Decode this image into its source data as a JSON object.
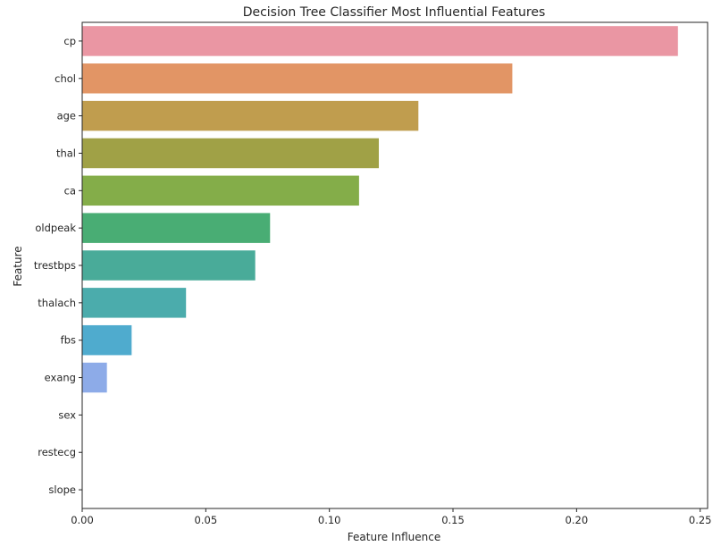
{
  "chart_data": {
    "type": "bar",
    "orientation": "horizontal",
    "title": "Decision Tree Classifier Most Influential Features",
    "xlabel": "Feature Influence",
    "ylabel": "Feature",
    "xlim": [
      0,
      0.253
    ],
    "x_ticks": [
      0.0,
      0.05,
      0.1,
      0.15,
      0.2,
      0.25
    ],
    "x_tick_labels": [
      "0.00",
      "0.05",
      "0.10",
      "0.15",
      "0.20",
      "0.25"
    ],
    "grid": false,
    "categories": [
      "cp",
      "chol",
      "age",
      "thal",
      "ca",
      "oldpeak",
      "trestbps",
      "thalach",
      "fbs",
      "exang",
      "sex",
      "restecg",
      "slope"
    ],
    "values": [
      0.241,
      0.174,
      0.136,
      0.12,
      0.112,
      0.076,
      0.07,
      0.042,
      0.02,
      0.01,
      0.0,
      0.0,
      0.0
    ],
    "colors": [
      "#ea96a3",
      "#e29565",
      "#c09d4e",
      "#a0a146",
      "#84ad49",
      "#49ad74",
      "#49ab99",
      "#4bacac",
      "#4fabce",
      "#8dabe8",
      "#bfa1ea",
      "#e58fe1",
      "#ea94c2"
    ]
  }
}
